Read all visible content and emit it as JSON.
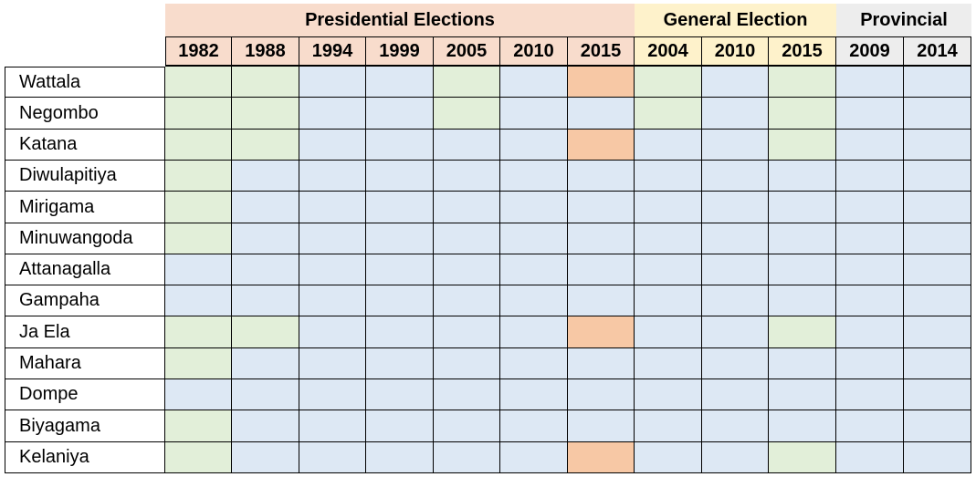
{
  "colors": {
    "presidential_header": "#f8dccc",
    "general_header": "#fef2cb",
    "provincial_header": "#ededed",
    "green": "#e2efd9",
    "blue": "#dde8f4",
    "orange": "#f7c8a5"
  },
  "groups": [
    {
      "label": "Presidential Elections",
      "span": 7,
      "color": "#f8dccc"
    },
    {
      "label": "General Election",
      "span": 3,
      "color": "#fef2cb"
    },
    {
      "label": "Provincial",
      "span": 2,
      "color": "#ededed"
    }
  ],
  "years": [
    "1982",
    "1988",
    "1994",
    "1999",
    "2005",
    "2010",
    "2015",
    "2004",
    "2010",
    "2015",
    "2009",
    "2014"
  ],
  "rows": [
    {
      "name": "Wattala",
      "cells": [
        "green",
        "green",
        "blue",
        "blue",
        "green",
        "blue",
        "orange",
        "green",
        "blue",
        "green",
        "blue",
        "blue"
      ]
    },
    {
      "name": "Negombo",
      "cells": [
        "green",
        "green",
        "blue",
        "blue",
        "green",
        "blue",
        "blue",
        "green",
        "blue",
        "green",
        "blue",
        "blue"
      ]
    },
    {
      "name": "Katana",
      "cells": [
        "green",
        "green",
        "blue",
        "blue",
        "blue",
        "blue",
        "orange",
        "blue",
        "blue",
        "green",
        "blue",
        "blue"
      ]
    },
    {
      "name": "Diwulapitiya",
      "cells": [
        "green",
        "blue",
        "blue",
        "blue",
        "blue",
        "blue",
        "blue",
        "blue",
        "blue",
        "blue",
        "blue",
        "blue"
      ]
    },
    {
      "name": "Mirigama",
      "cells": [
        "green",
        "blue",
        "blue",
        "blue",
        "blue",
        "blue",
        "blue",
        "blue",
        "blue",
        "blue",
        "blue",
        "blue"
      ]
    },
    {
      "name": "Minuwangoda",
      "cells": [
        "green",
        "blue",
        "blue",
        "blue",
        "blue",
        "blue",
        "blue",
        "blue",
        "blue",
        "blue",
        "blue",
        "blue"
      ]
    },
    {
      "name": "Attanagalla",
      "cells": [
        "blue",
        "blue",
        "blue",
        "blue",
        "blue",
        "blue",
        "blue",
        "blue",
        "blue",
        "blue",
        "blue",
        "blue"
      ]
    },
    {
      "name": "Gampaha",
      "cells": [
        "blue",
        "blue",
        "blue",
        "blue",
        "blue",
        "blue",
        "blue",
        "blue",
        "blue",
        "blue",
        "blue",
        "blue"
      ]
    },
    {
      "name": "Ja Ela",
      "cells": [
        "green",
        "green",
        "blue",
        "blue",
        "blue",
        "blue",
        "orange",
        "blue",
        "blue",
        "green",
        "blue",
        "blue"
      ]
    },
    {
      "name": "Mahara",
      "cells": [
        "green",
        "blue",
        "blue",
        "blue",
        "blue",
        "blue",
        "blue",
        "blue",
        "blue",
        "blue",
        "blue",
        "blue"
      ]
    },
    {
      "name": "Dompe",
      "cells": [
        "blue",
        "blue",
        "blue",
        "blue",
        "blue",
        "blue",
        "blue",
        "blue",
        "blue",
        "blue",
        "blue",
        "blue"
      ]
    },
    {
      "name": "Biyagama",
      "cells": [
        "green",
        "blue",
        "blue",
        "blue",
        "blue",
        "blue",
        "blue",
        "blue",
        "blue",
        "blue",
        "blue",
        "blue"
      ]
    },
    {
      "name": "Kelaniya",
      "cells": [
        "green",
        "blue",
        "blue",
        "blue",
        "blue",
        "blue",
        "orange",
        "blue",
        "blue",
        "green",
        "blue",
        "blue"
      ]
    }
  ]
}
